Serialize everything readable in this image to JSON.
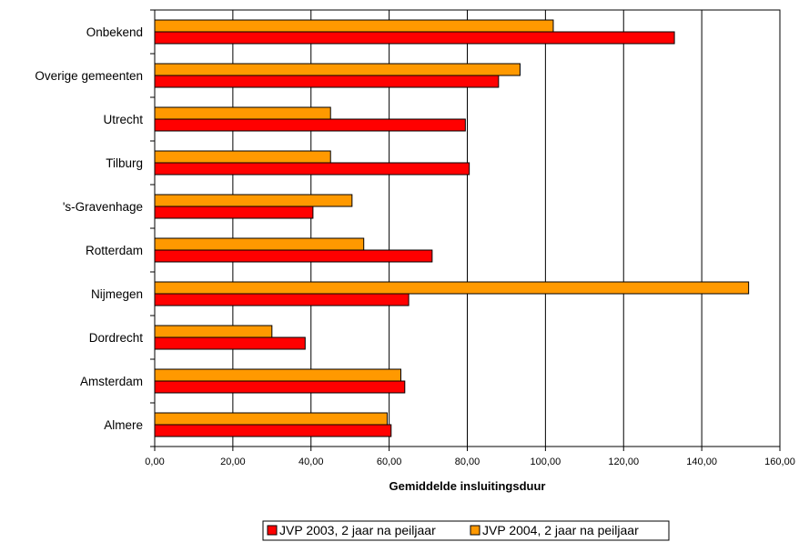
{
  "chart_data": {
    "type": "bar",
    "orientation": "horizontal",
    "categories": [
      "Almere",
      "Amsterdam",
      "Dordrecht",
      "Nijmegen",
      "Rotterdam",
      "'s-Gravenhage",
      "Tilburg",
      "Utrecht",
      "Overige gemeenten",
      "Onbekend"
    ],
    "series": [
      {
        "name": "JVP 2003, 2 jaar na peiljaar",
        "color": "#ff0000",
        "values": [
          60.5,
          64.0,
          38.5,
          65.0,
          71.0,
          40.5,
          80.5,
          79.5,
          88.0,
          133.0
        ]
      },
      {
        "name": "JVP 2004, 2 jaar na peiljaar",
        "color": "#ff9900",
        "values": [
          59.5,
          63.0,
          30.0,
          152.0,
          53.5,
          50.5,
          45.0,
          45.0,
          93.5,
          102.0
        ]
      }
    ],
    "xlabel": "Gemiddelde insluitingsduur",
    "xlim": [
      0,
      160
    ],
    "xticks": [
      "0,00",
      "20,00",
      "40,00",
      "60,00",
      "80,00",
      "100,00",
      "120,00",
      "140,00",
      "160,00"
    ],
    "grid": "vertical",
    "legend_position": "bottom"
  }
}
